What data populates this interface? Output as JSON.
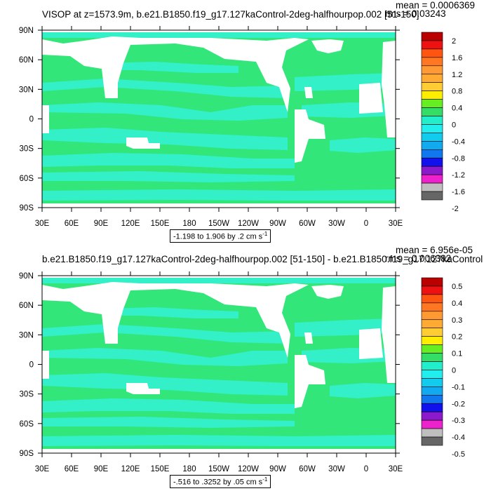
{
  "colors": {
    "land": "#ffffff",
    "ocean_main": "#33e67a",
    "ocean_light": "#33f0c8",
    "cbar": [
      "#666666",
      "#bfbfbf",
      "#ee22cc",
      "#8b1acc",
      "#1111ee",
      "#1177ee",
      "#11aaee",
      "#11ccee",
      "#22eeee",
      "#22eecc",
      "#33dd66",
      "#66ee22",
      "#ffee00",
      "#ffcc33",
      "#ffaa33",
      "#ff9933",
      "#ff7722",
      "#ff5511",
      "#ee1111",
      "#bb0000"
    ]
  },
  "panels": [
    {
      "title": "VISOP at z=1573.9m, b.e21.B1850.f19_g17.127kaControl-2deg-halfhourpop.002 [51-150]",
      "mean": "mean = 0.0006369",
      "rms": "rms = 0.03243",
      "lat_labels": [
        "90N",
        "60N",
        "30N",
        "0",
        "30S",
        "60S",
        "90S"
      ],
      "lon_labels": [
        "30E",
        "60E",
        "90E",
        "120E",
        "150E",
        "180",
        "150W",
        "120W",
        "90W",
        "60W",
        "30W",
        "0",
        "30E"
      ],
      "colorbar_labels": [
        "2",
        "1.6",
        "1.2",
        "0.8",
        "0.4",
        "0",
        "-0.4",
        "-0.8",
        "-1.2",
        "-1.6",
        "-2"
      ],
      "info": "-1.198 to 1.906 by .2 cm s",
      "info_sup": "-1"
    },
    {
      "title": "b.e21.B1850.f19_g17.127kaControl-2deg-halfhourpop.002 [51-150] - b.e21.B1850.f19_g17.127kaControl",
      "mean": "mean = 6.956e-05",
      "rms": "rms = 0.006382",
      "lat_labels": [
        "90N",
        "60N",
        "30N",
        "0",
        "30S",
        "60S",
        "90S"
      ],
      "lon_labels": [
        "30E",
        "60E",
        "90E",
        "120E",
        "150E",
        "180",
        "150W",
        "120W",
        "90W",
        "60W",
        "30W",
        "0",
        "30E"
      ],
      "colorbar_labels": [
        "0.5",
        "0.4",
        "0.3",
        "0.2",
        "0.1",
        "0",
        "-0.1",
        "-0.2",
        "-0.3",
        "-0.4",
        "-0.5"
      ],
      "info": "-.516 to .3252 by .05 cm s",
      "info_sup": "-1"
    }
  ]
}
